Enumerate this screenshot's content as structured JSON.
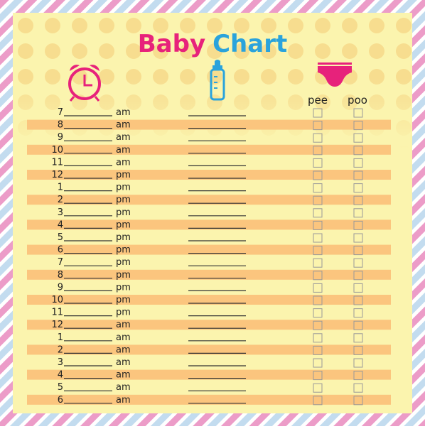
{
  "title": {
    "part1": "Baby",
    "part2": "Chart"
  },
  "columns": {
    "pee": "pee",
    "poo": "poo"
  },
  "rows": [
    {
      "hour": "7",
      "period": "am"
    },
    {
      "hour": "8",
      "period": "am"
    },
    {
      "hour": "9",
      "period": "am"
    },
    {
      "hour": "10",
      "period": "am"
    },
    {
      "hour": "11",
      "period": "am"
    },
    {
      "hour": "12",
      "period": "pm"
    },
    {
      "hour": "1",
      "period": "pm"
    },
    {
      "hour": "2",
      "period": "pm"
    },
    {
      "hour": "3",
      "period": "pm"
    },
    {
      "hour": "4",
      "period": "pm"
    },
    {
      "hour": "5",
      "period": "pm"
    },
    {
      "hour": "6",
      "period": "pm"
    },
    {
      "hour": "7",
      "period": "pm"
    },
    {
      "hour": "8",
      "period": "pm"
    },
    {
      "hour": "9",
      "period": "pm"
    },
    {
      "hour": "10",
      "period": "pm"
    },
    {
      "hour": "11",
      "period": "pm"
    },
    {
      "hour": "12",
      "period": "am"
    },
    {
      "hour": "1",
      "period": "am"
    },
    {
      "hour": "2",
      "period": "am"
    },
    {
      "hour": "3",
      "period": "am"
    },
    {
      "hour": "4",
      "period": "am"
    },
    {
      "hour": "5",
      "period": "am"
    },
    {
      "hour": "6",
      "period": "am"
    }
  ]
}
